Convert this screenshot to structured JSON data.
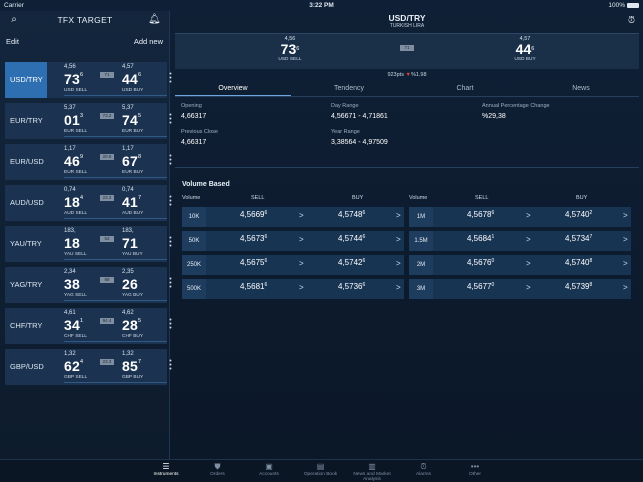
{
  "status": {
    "carrier": "Carrier",
    "time": "3:22 PM",
    "battery": "100%"
  },
  "left": {
    "title": "TFX TARGET",
    "edit": "Edit",
    "add_new": "Add new",
    "cards": [
      {
        "name": "USD/TRY",
        "sell_small": "4,56",
        "sell_big": "73",
        "sell_sup": "6",
        "spread": "71",
        "buy_small": "4,57",
        "buy_big": "44",
        "buy_sup": "6",
        "sell_lbl": "USD SELL",
        "buy_lbl": "USD BUY"
      },
      {
        "name": "EUR/TRY",
        "sell_small": "5,37",
        "sell_big": "01",
        "sell_sup": "3",
        "spread": "73.2",
        "buy_small": "5,37",
        "buy_big": "74",
        "buy_sup": "5",
        "sell_lbl": "EUR SELL",
        "buy_lbl": "EUR BUY"
      },
      {
        "name": "EUR/USD",
        "sell_small": "1,17",
        "sell_big": "46",
        "sell_sup": "9",
        "spread": "20.8",
        "buy_small": "1,17",
        "buy_big": "67",
        "buy_sup": "8",
        "sell_lbl": "EUR SELL",
        "buy_lbl": "EUR BUY"
      },
      {
        "name": "AUD/USD",
        "sell_small": "0,74",
        "sell_big": "18",
        "sell_sup": "4",
        "spread": "23.2",
        "buy_small": "0,74",
        "buy_big": "41",
        "buy_sup": "7",
        "sell_lbl": "AUD SELL",
        "buy_lbl": "AUD BUY"
      },
      {
        "name": "YAU/TRY",
        "sell_small": "183,",
        "sell_big": "18",
        "sell_sup": "",
        "spread": "53",
        "buy_small": "183,",
        "buy_big": "71",
        "buy_sup": "",
        "sell_lbl": "YAU SELL",
        "buy_lbl": "YAU BUY"
      },
      {
        "name": "YAG/TRY",
        "sell_small": "2,34",
        "sell_big": "38",
        "sell_sup": "",
        "spread": "88",
        "buy_small": "2,35",
        "buy_big": "26",
        "buy_sup": "",
        "sell_lbl": "YAG SELL",
        "buy_lbl": "YAG BUY"
      },
      {
        "name": "CHF/TRY",
        "sell_small": "4,61",
        "sell_big": "34",
        "sell_sup": "1",
        "spread": "94.4",
        "buy_small": "4,62",
        "buy_big": "28",
        "buy_sup": "5",
        "sell_lbl": "CHF SELL",
        "buy_lbl": "CHF BUY"
      },
      {
        "name": "GBP/USD",
        "sell_small": "1,32",
        "sell_big": "62",
        "sell_sup": "4",
        "spread": "23.3",
        "buy_small": "1,32",
        "buy_big": "85",
        "buy_sup": "7",
        "sell_lbl": "GBP SELL",
        "buy_lbl": "GBP BUY"
      }
    ]
  },
  "right": {
    "pair": "USD/TRY",
    "subtitle": "TURKISH LIRA",
    "quote": {
      "sell_small": "4,56",
      "sell_big": "73",
      "sell_sup": "6",
      "spread": "71",
      "buy_small": "4,57",
      "buy_big": "44",
      "buy_sup": "6",
      "sell_lbl": "USD SELL",
      "buy_lbl": "USD BUY"
    },
    "pts": "923pts",
    "pct": "%1.98",
    "tabs": [
      "Overview",
      "Tendency",
      "Chart",
      "News"
    ],
    "info": {
      "opening_label": "Opening",
      "opening": "4,66317",
      "day_range_label": "Day Range",
      "day_range": "4,56671 - 4,71861",
      "annual_label": "Annual Percentage Change",
      "annual": "%29,38",
      "prev_close_label": "Previous Close",
      "prev_close": "4,66317",
      "year_range_label": "Year Range",
      "year_range": "3,38564 - 4,97509"
    },
    "volume_title": "Volume Based",
    "col_volume": "Volume",
    "col_sell": "SELL",
    "col_buy": "BUY",
    "left_rows": [
      {
        "vol": "10K",
        "sell": "4,5669",
        "sell_sup": "6",
        "buy": "4,5748",
        "buy_sup": "6"
      },
      {
        "vol": "50K",
        "sell": "4,5673",
        "sell_sup": "6",
        "buy": "4,5744",
        "buy_sup": "6"
      },
      {
        "vol": "250K",
        "sell": "4,5675",
        "sell_sup": "6",
        "buy": "4,5742",
        "buy_sup": "6"
      },
      {
        "vol": "500K",
        "sell": "4,5681",
        "sell_sup": "6",
        "buy": "4,5736",
        "buy_sup": "6"
      }
    ],
    "right_rows": [
      {
        "vol": "1M",
        "sell": "4,5678",
        "sell_sup": "6",
        "buy": "4,5740",
        "buy_sup": "2"
      },
      {
        "vol": "1.5M",
        "sell": "4,5684",
        "sell_sup": "1",
        "buy": "4,5734",
        "buy_sup": "7"
      },
      {
        "vol": "2M",
        "sell": "4,5676",
        "sell_sup": "0",
        "buy": "4,5740",
        "buy_sup": "8"
      },
      {
        "vol": "3M",
        "sell": "4,5677",
        "sell_sup": "0",
        "buy": "4,5739",
        "buy_sup": "8"
      }
    ]
  },
  "bottom": [
    "Instruments",
    "Orders",
    "Accounts",
    "Operation Book",
    "News and Market Analysis",
    "Alarms",
    "Other"
  ]
}
